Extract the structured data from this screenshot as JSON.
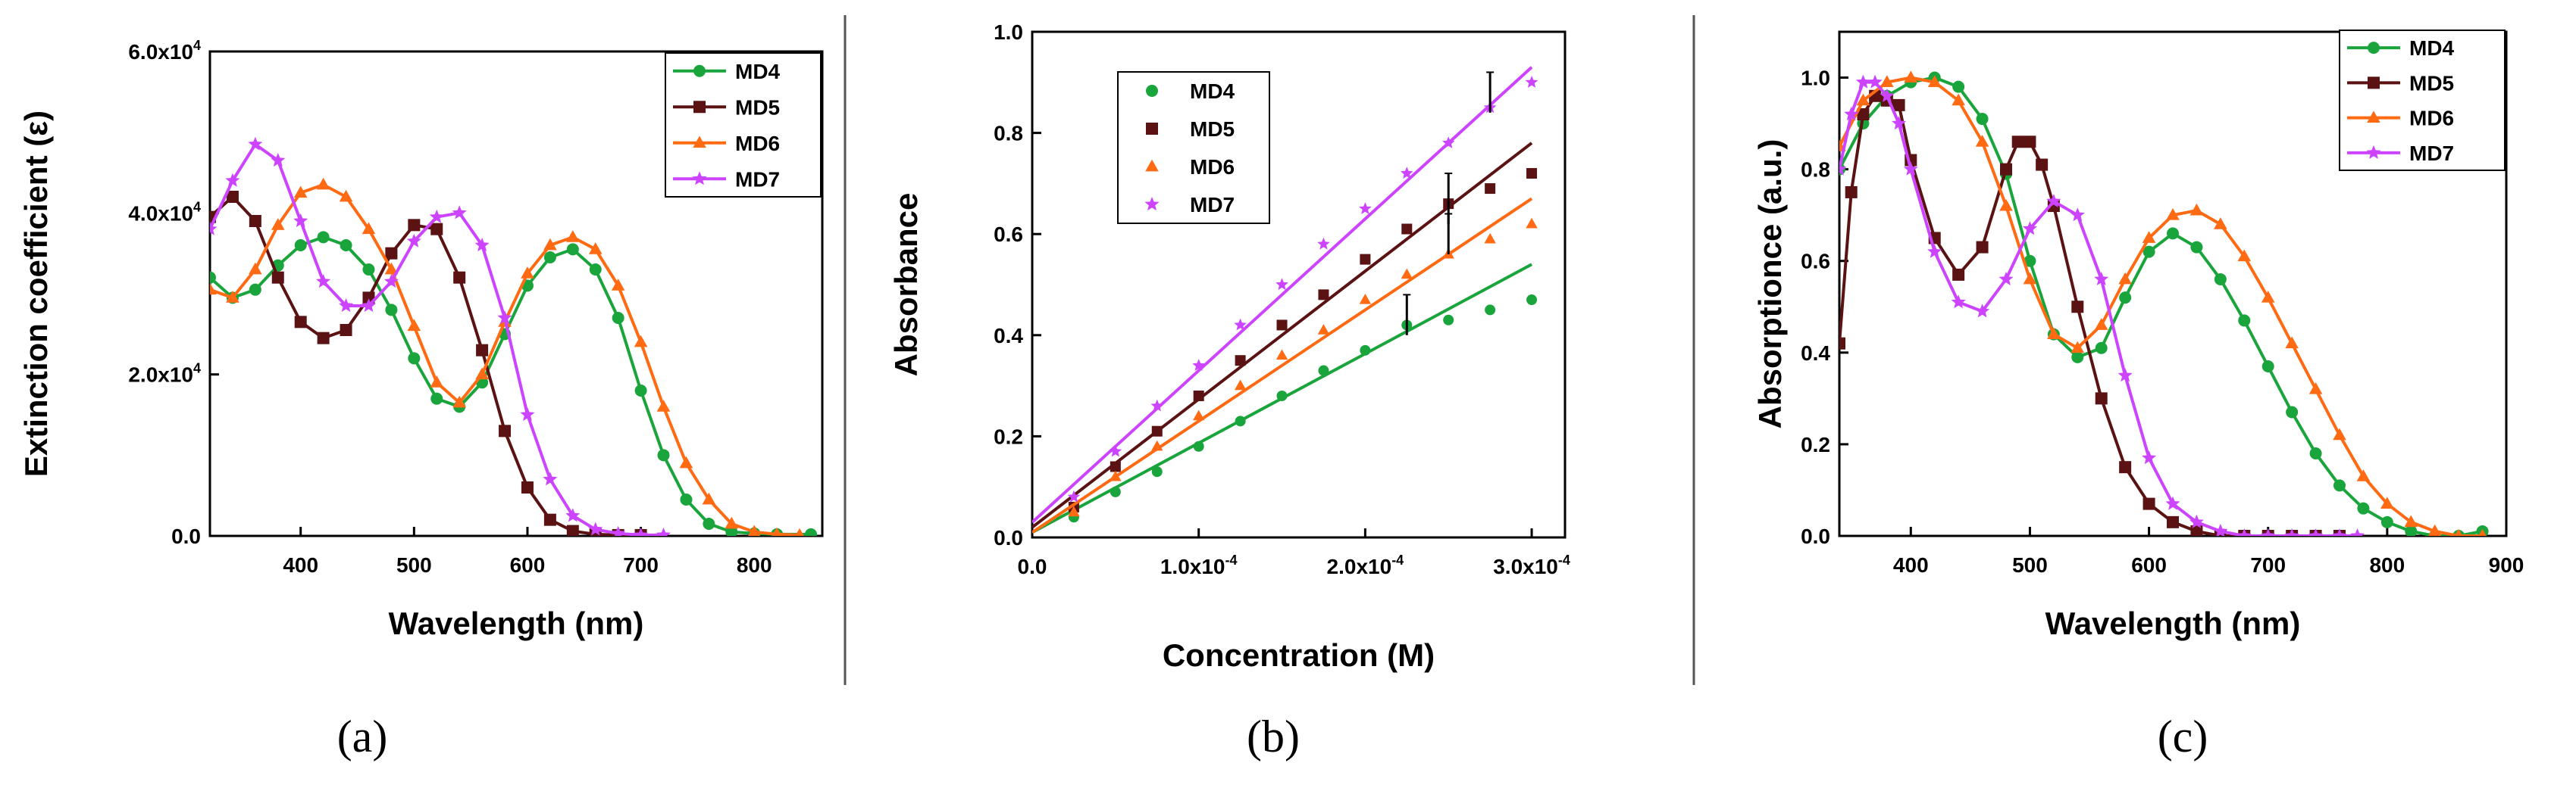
{
  "figure": {
    "panel_labels": [
      "(a)",
      "(b)",
      "(c)"
    ]
  },
  "chart_data": [
    {
      "id": "a",
      "type": "line",
      "xlabel": "Wavelength (nm)",
      "ylabel": "Extinction coefficient (ε)",
      "xlim": [
        320,
        860
      ],
      "ylim": [
        0,
        60000
      ],
      "xticks": [
        400,
        500,
        600,
        700,
        800
      ],
      "xtick_labels": [
        "400",
        "500",
        "600",
        "700",
        "800"
      ],
      "yticks": [
        0,
        20000,
        40000,
        60000
      ],
      "ytick_labels": [
        {
          "base": "0.0",
          "exp": ""
        },
        {
          "base": "2.0x10",
          "exp": "4"
        },
        {
          "base": "4.0x10",
          "exp": "4"
        },
        {
          "base": "6.0x10",
          "exp": "4"
        }
      ],
      "legend": [
        "MD4",
        "MD5",
        "MD6",
        "MD7"
      ],
      "legend_position": "top-right",
      "series": [
        {
          "name": "MD4",
          "color": "#1aa53c",
          "marker": "circle",
          "x": [
            320,
            340,
            360,
            380,
            400,
            420,
            440,
            460,
            480,
            500,
            520,
            540,
            560,
            580,
            600,
            620,
            640,
            660,
            680,
            700,
            720,
            740,
            760,
            780,
            800,
            820,
            850
          ],
          "y": [
            32000,
            29500,
            30500,
            33500,
            36000,
            37000,
            36000,
            33000,
            28000,
            22000,
            17000,
            16000,
            19000,
            25000,
            31000,
            34500,
            35500,
            33000,
            27000,
            18000,
            10000,
            4500,
            1500,
            500,
            300,
            200,
            200
          ]
        },
        {
          "name": "MD5",
          "color": "#5a1212",
          "marker": "square",
          "x": [
            320,
            340,
            360,
            380,
            400,
            420,
            440,
            460,
            480,
            500,
            520,
            540,
            560,
            580,
            600,
            620,
            640,
            660,
            680,
            700
          ],
          "y": [
            39500,
            42000,
            39000,
            32000,
            26500,
            24500,
            25500,
            29500,
            35000,
            38500,
            38000,
            32000,
            23000,
            13000,
            6000,
            2000,
            600,
            200,
            100,
            100
          ]
        },
        {
          "name": "MD6",
          "color": "#ff6a13",
          "marker": "triangle",
          "x": [
            320,
            340,
            360,
            380,
            400,
            420,
            440,
            460,
            480,
            500,
            520,
            540,
            560,
            580,
            600,
            620,
            640,
            660,
            680,
            700,
            720,
            740,
            760,
            780,
            800,
            820,
            840
          ],
          "y": [
            30500,
            29500,
            33000,
            38500,
            42500,
            43500,
            42000,
            38000,
            33000,
            26000,
            19000,
            16500,
            20000,
            26500,
            32500,
            36000,
            37000,
            35500,
            31000,
            24000,
            16000,
            9000,
            4500,
            1500,
            500,
            200,
            100
          ]
        },
        {
          "name": "MD7",
          "color": "#cc44ff",
          "marker": "star",
          "x": [
            320,
            340,
            360,
            380,
            400,
            420,
            440,
            460,
            480,
            500,
            520,
            540,
            560,
            580,
            600,
            620,
            640,
            660,
            680,
            700,
            720
          ],
          "y": [
            38000,
            44000,
            48500,
            46500,
            39000,
            31500,
            28500,
            28500,
            31500,
            36500,
            39500,
            40000,
            36000,
            27000,
            15000,
            7000,
            2500,
            800,
            300,
            100,
            100
          ]
        }
      ]
    },
    {
      "id": "b",
      "type": "scatter",
      "xlabel": "Concentration (M)",
      "ylabel": "Absorbance",
      "xlim": [
        0,
        0.00032
      ],
      "ylim": [
        0,
        1.0
      ],
      "xticks": [
        0,
        0.0001,
        0.0002,
        0.0003
      ],
      "xtick_labels": [
        {
          "base": "0.0",
          "exp": ""
        },
        {
          "base": "1.0x10",
          "exp": "-4"
        },
        {
          "base": "2.0x10",
          "exp": "-4"
        },
        {
          "base": "3.0x10",
          "exp": "-4"
        }
      ],
      "yticks": [
        0,
        0.2,
        0.4,
        0.6,
        0.8,
        1.0
      ],
      "ytick_labels": [
        "0.0",
        "0.2",
        "0.4",
        "0.6",
        "0.8",
        "1.0"
      ],
      "legend": [
        "MD4",
        "MD5",
        "MD6",
        "MD7"
      ],
      "legend_position": "top-left",
      "x": [
        2.5e-05,
        5e-05,
        7.5e-05,
        0.0001,
        0.000125,
        0.00015,
        0.000175,
        0.0002,
        0.000225,
        0.00025,
        0.000275,
        0.0003
      ],
      "series": [
        {
          "name": "MD4",
          "color": "#1aa53c",
          "marker": "circle",
          "y": [
            0.04,
            0.09,
            0.13,
            0.18,
            0.23,
            0.28,
            0.33,
            0.37,
            0.42,
            0.43,
            0.45,
            0.47
          ],
          "fit": [
            0.01,
            0.54
          ]
        },
        {
          "name": "MD5",
          "color": "#5a1212",
          "marker": "square",
          "y": [
            0.06,
            0.14,
            0.21,
            0.28,
            0.35,
            0.42,
            0.48,
            0.55,
            0.61,
            0.66,
            0.69,
            0.72
          ],
          "fit": [
            0.02,
            0.78
          ]
        },
        {
          "name": "MD6",
          "color": "#ff6a13",
          "marker": "triangle",
          "y": [
            0.05,
            0.12,
            0.18,
            0.24,
            0.3,
            0.36,
            0.41,
            0.47,
            0.52,
            0.56,
            0.59,
            0.62
          ],
          "fit": [
            0.01,
            0.67
          ]
        },
        {
          "name": "MD7",
          "color": "#cc44ff",
          "marker": "star",
          "y": [
            0.08,
            0.17,
            0.26,
            0.34,
            0.42,
            0.5,
            0.58,
            0.65,
            0.72,
            0.78,
            0.85,
            0.9
          ],
          "fit": [
            0.03,
            0.93
          ]
        }
      ],
      "error_bars": [
        {
          "x": 0.000225,
          "y": 0.44,
          "err": 0.04
        },
        {
          "x": 0.00025,
          "y": 0.6,
          "err": 0.04
        },
        {
          "x": 0.00025,
          "y": 0.67,
          "err": 0.05
        },
        {
          "x": 0.000275,
          "y": 0.88,
          "err": 0.04
        }
      ]
    },
    {
      "id": "c",
      "type": "line",
      "xlabel": "Wavelength (nm)",
      "ylabel": "Absorptionce (a.u.)",
      "xlim": [
        340,
        900
      ],
      "ylim": [
        0,
        1.1
      ],
      "xticks": [
        400,
        500,
        600,
        700,
        800,
        900
      ],
      "xtick_labels": [
        "400",
        "500",
        "600",
        "700",
        "800",
        "900"
      ],
      "yticks": [
        0,
        0.2,
        0.4,
        0.6,
        0.8,
        1.0
      ],
      "ytick_labels": [
        "0.0",
        "0.2",
        "0.4",
        "0.6",
        "0.8",
        "1.0"
      ],
      "legend": [
        "MD4",
        "MD5",
        "MD6",
        "MD7"
      ],
      "legend_position": "top-right",
      "series": [
        {
          "name": "MD4",
          "color": "#1aa53c",
          "marker": "circle",
          "x": [
            340,
            360,
            380,
            400,
            420,
            440,
            460,
            480,
            500,
            520,
            540,
            560,
            580,
            600,
            620,
            640,
            660,
            680,
            700,
            720,
            740,
            760,
            780,
            800,
            820,
            840,
            860,
            880
          ],
          "y": [
            0.8,
            0.9,
            0.96,
            0.99,
            1.0,
            0.98,
            0.91,
            0.79,
            0.6,
            0.44,
            0.39,
            0.41,
            0.52,
            0.62,
            0.66,
            0.63,
            0.56,
            0.47,
            0.37,
            0.27,
            0.18,
            0.11,
            0.06,
            0.03,
            0.01,
            0.0,
            0.0,
            0.01
          ]
        },
        {
          "name": "MD5",
          "color": "#5a1212",
          "marker": "square",
          "x": [
            340,
            350,
            360,
            370,
            380,
            390,
            400,
            420,
            440,
            460,
            480,
            490,
            500,
            510,
            520,
            540,
            560,
            580,
            600,
            620,
            640,
            660,
            680,
            700,
            720,
            740,
            760
          ],
          "y": [
            0.42,
            0.75,
            0.92,
            0.96,
            0.95,
            0.94,
            0.82,
            0.65,
            0.57,
            0.63,
            0.8,
            0.86,
            0.86,
            0.81,
            0.72,
            0.5,
            0.3,
            0.15,
            0.07,
            0.03,
            0.01,
            0.0,
            0.0,
            0.0,
            0.0,
            0.0,
            0.0
          ]
        },
        {
          "name": "MD6",
          "color": "#ff6a13",
          "marker": "triangle",
          "x": [
            340,
            360,
            380,
            400,
            420,
            440,
            460,
            480,
            500,
            520,
            540,
            560,
            580,
            600,
            620,
            640,
            660,
            680,
            700,
            720,
            740,
            760,
            780,
            800,
            820,
            840,
            860,
            880
          ],
          "y": [
            0.85,
            0.95,
            0.99,
            1.0,
            0.99,
            0.95,
            0.86,
            0.72,
            0.56,
            0.44,
            0.41,
            0.46,
            0.56,
            0.65,
            0.7,
            0.71,
            0.68,
            0.61,
            0.52,
            0.42,
            0.32,
            0.22,
            0.13,
            0.07,
            0.03,
            0.01,
            0.0,
            0.0
          ]
        },
        {
          "name": "MD7",
          "color": "#cc44ff",
          "marker": "star",
          "x": [
            340,
            350,
            360,
            370,
            380,
            390,
            400,
            420,
            440,
            460,
            480,
            500,
            520,
            540,
            560,
            580,
            600,
            620,
            640,
            660,
            680,
            700,
            720,
            740,
            760,
            775
          ],
          "y": [
            0.8,
            0.92,
            0.99,
            0.99,
            0.96,
            0.9,
            0.8,
            0.62,
            0.51,
            0.49,
            0.56,
            0.67,
            0.73,
            0.7,
            0.56,
            0.35,
            0.17,
            0.07,
            0.03,
            0.01,
            0.0,
            0.0,
            0.0,
            0.0,
            0.0,
            0.0
          ]
        }
      ]
    }
  ]
}
